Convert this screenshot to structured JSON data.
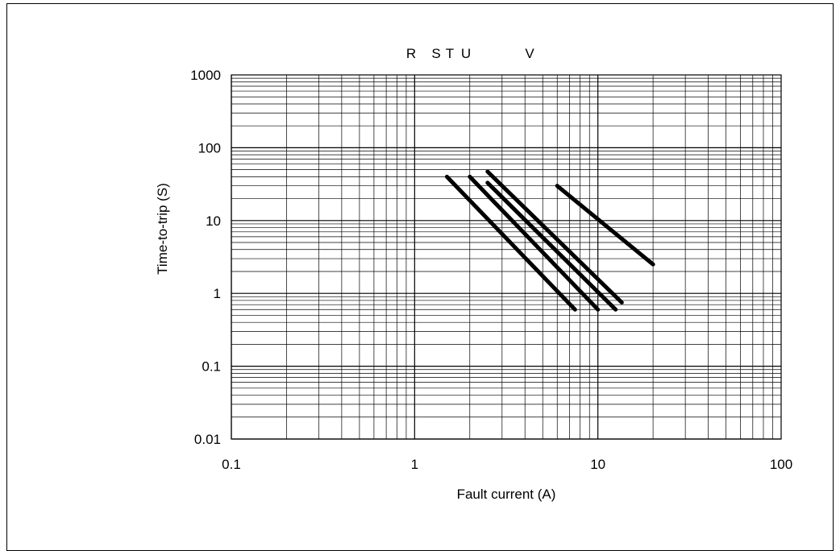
{
  "chart_data": {
    "type": "line",
    "title": "",
    "series_labels": [
      "R",
      "S",
      "T",
      "U",
      "V"
    ],
    "xlabel": "Fault current (A)",
    "ylabel": "Time-to-trip (S)",
    "x_scale": "log",
    "y_scale": "log",
    "xlim": [
      0.1,
      100
    ],
    "ylim": [
      0.01,
      1000
    ],
    "x_ticks": [
      "0.1",
      "1",
      "10",
      "100"
    ],
    "y_ticks": [
      "0.01",
      "0.1",
      "1",
      "10",
      "100",
      "1000"
    ],
    "grid": true,
    "line_color": "#000000",
    "series": [
      {
        "x": [
          1.5,
          7.5
        ],
        "y": [
          40,
          0.6
        ]
      },
      {
        "x": [
          2.0,
          10.0
        ],
        "y": [
          40,
          0.6
        ]
      },
      {
        "x": [
          2.5,
          12.5
        ],
        "y": [
          33,
          0.6
        ]
      },
      {
        "x": [
          2.5,
          13.5
        ],
        "y": [
          47,
          0.75
        ]
      },
      {
        "x": [
          6.0,
          20.0
        ],
        "y": [
          30,
          2.5
        ]
      }
    ]
  }
}
